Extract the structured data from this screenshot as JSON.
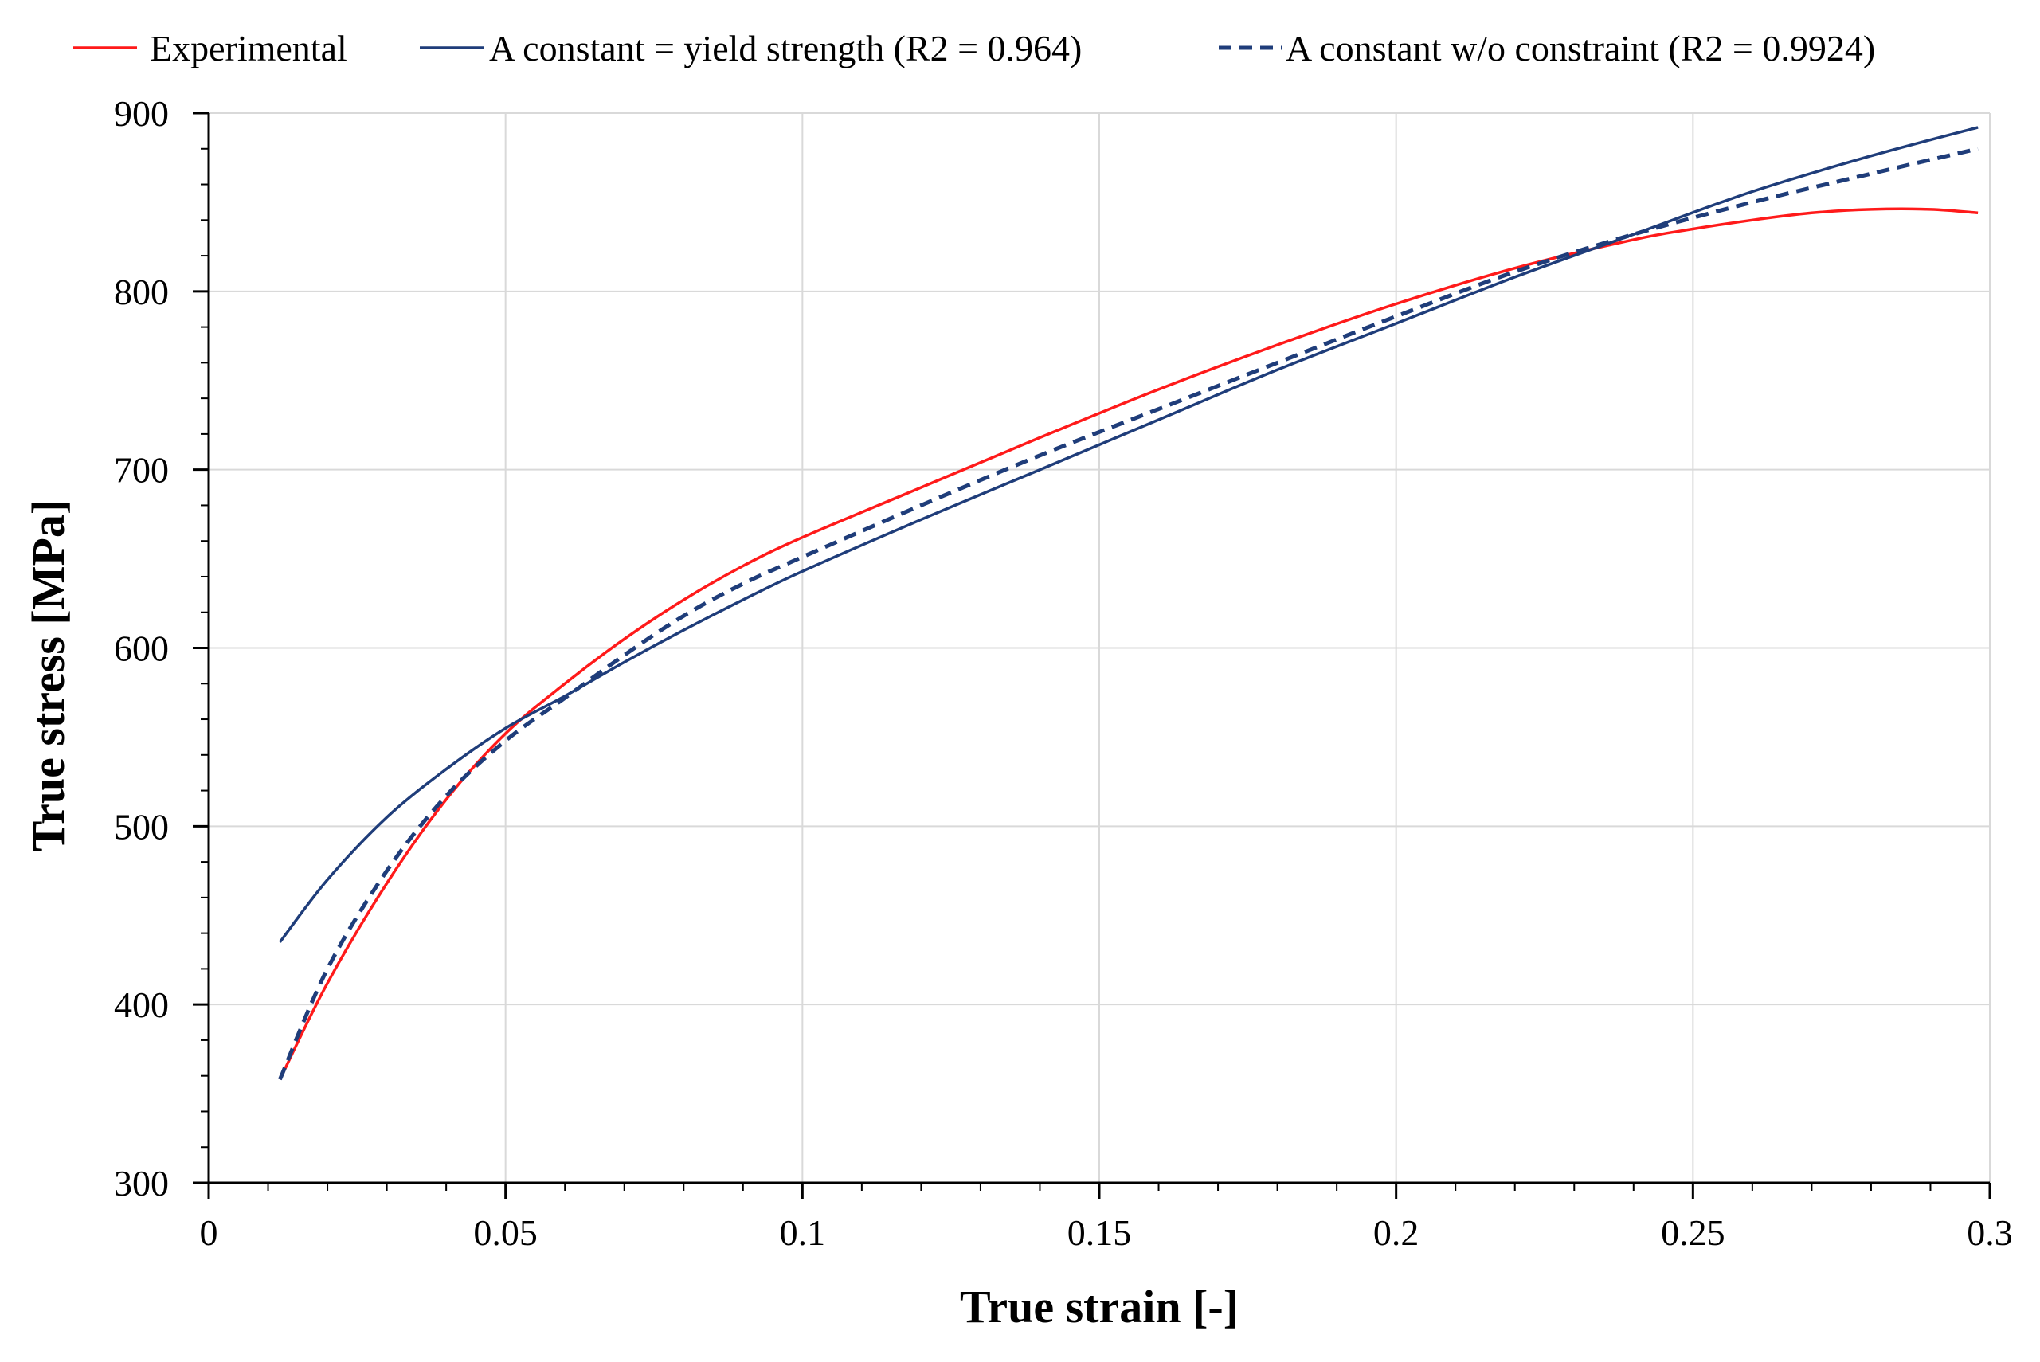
{
  "chart_data": {
    "type": "line",
    "title": "",
    "xlabel": "True strain [-]",
    "ylabel": "True stress  [MPa]",
    "xlim": [
      0,
      0.3
    ],
    "ylim": [
      300,
      900
    ],
    "x_ticks": [
      0,
      0.05,
      0.1,
      0.15,
      0.2,
      0.25,
      0.3
    ],
    "x_tick_labels": [
      "0",
      "0.05",
      "0.1",
      "0.15",
      "0.2",
      "0.25",
      "0.3"
    ],
    "y_ticks": [
      300,
      400,
      500,
      600,
      700,
      800,
      900
    ],
    "y_tick_labels": [
      "300",
      "400",
      "500",
      "600",
      "700",
      "800",
      "900"
    ],
    "grid": true,
    "legend_position": "top",
    "series": [
      {
        "name": "Experimental",
        "color": "#ff1a1a",
        "dash": "solid",
        "points": [
          [
            0.012,
            358
          ],
          [
            0.02,
            412
          ],
          [
            0.03,
            468
          ],
          [
            0.04,
            515
          ],
          [
            0.05,
            552
          ],
          [
            0.06,
            580
          ],
          [
            0.07,
            605
          ],
          [
            0.08,
            627
          ],
          [
            0.09,
            646
          ],
          [
            0.1,
            662
          ],
          [
            0.12,
            690
          ],
          [
            0.14,
            718
          ],
          [
            0.16,
            745
          ],
          [
            0.18,
            770
          ],
          [
            0.2,
            793
          ],
          [
            0.22,
            813
          ],
          [
            0.24,
            829
          ],
          [
            0.25,
            835
          ],
          [
            0.26,
            840
          ],
          [
            0.27,
            844
          ],
          [
            0.28,
            846
          ],
          [
            0.29,
            846
          ],
          [
            0.298,
            844
          ]
        ]
      },
      {
        "name": "A constant = yield strength (R2 = 0.964)",
        "color": "#1f3d7a",
        "dash": "solid",
        "points": [
          [
            0.012,
            435
          ],
          [
            0.02,
            470
          ],
          [
            0.03,
            505
          ],
          [
            0.04,
            532
          ],
          [
            0.05,
            555
          ],
          [
            0.06,
            573
          ],
          [
            0.07,
            592
          ],
          [
            0.08,
            610
          ],
          [
            0.09,
            627
          ],
          [
            0.1,
            643
          ],
          [
            0.12,
            672
          ],
          [
            0.14,
            700
          ],
          [
            0.16,
            728
          ],
          [
            0.18,
            756
          ],
          [
            0.2,
            782
          ],
          [
            0.22,
            808
          ],
          [
            0.24,
            832
          ],
          [
            0.26,
            856
          ],
          [
            0.28,
            876
          ],
          [
            0.298,
            892
          ]
        ]
      },
      {
        "name": "A constant w/o constraint (R2 = 0.9924)",
        "color": "#1f3d7a",
        "dash": "dashed",
        "points": [
          [
            0.012,
            358
          ],
          [
            0.02,
            420
          ],
          [
            0.03,
            475
          ],
          [
            0.04,
            517
          ],
          [
            0.05,
            548
          ],
          [
            0.06,
            572
          ],
          [
            0.07,
            596
          ],
          [
            0.08,
            618
          ],
          [
            0.09,
            636
          ],
          [
            0.1,
            651
          ],
          [
            0.12,
            680
          ],
          [
            0.14,
            708
          ],
          [
            0.16,
            734
          ],
          [
            0.18,
            760
          ],
          [
            0.2,
            786
          ],
          [
            0.22,
            811
          ],
          [
            0.24,
            832
          ],
          [
            0.26,
            850
          ],
          [
            0.28,
            866
          ],
          [
            0.298,
            880
          ]
        ]
      }
    ]
  }
}
